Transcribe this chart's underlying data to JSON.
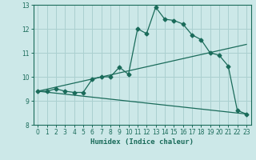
{
  "xlabel": "Humidex (Indice chaleur)",
  "xlim": [
    -0.5,
    23.5
  ],
  "ylim": [
    8,
    13
  ],
  "yticks": [
    8,
    9,
    10,
    11,
    12,
    13
  ],
  "xticks": [
    0,
    1,
    2,
    3,
    4,
    5,
    6,
    7,
    8,
    9,
    10,
    11,
    12,
    13,
    14,
    15,
    16,
    17,
    18,
    19,
    20,
    21,
    22,
    23
  ],
  "bg_color": "#cce8e8",
  "grid_color": "#aad0d0",
  "line_color": "#1a6b5a",
  "line1_x": [
    0,
    1,
    2,
    3,
    4,
    5,
    6,
    7,
    8,
    9,
    10,
    11,
    12,
    13,
    14,
    15,
    16,
    17,
    18,
    19,
    20,
    21,
    22,
    23
  ],
  "line1_y": [
    9.4,
    9.4,
    9.5,
    9.4,
    9.35,
    9.35,
    9.9,
    10.0,
    10.0,
    10.4,
    10.1,
    12.0,
    11.8,
    12.9,
    12.4,
    12.35,
    12.2,
    11.75,
    11.55,
    11.0,
    10.9,
    10.45,
    8.6,
    8.45
  ],
  "line2_x": [
    0,
    23
  ],
  "line2_y": [
    9.4,
    11.35
  ],
  "line3_x": [
    0,
    23
  ],
  "line3_y": [
    9.4,
    8.45
  ]
}
